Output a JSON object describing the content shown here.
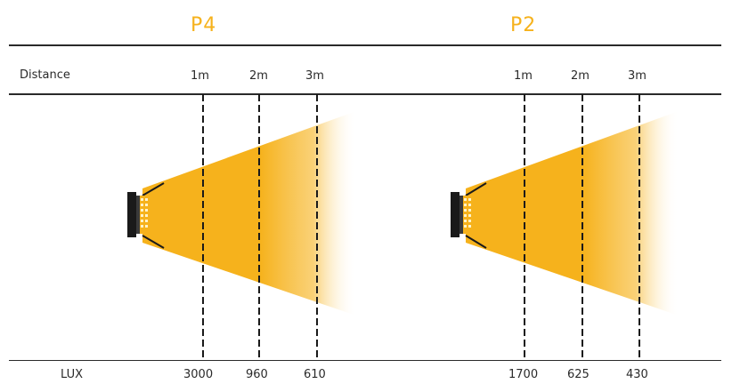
{
  "colors": {
    "beam": "#f6b21c",
    "title": "#f6b21c",
    "lines": "#1a1a1a"
  },
  "row_labels": {
    "distance": "Distance",
    "lux": "LUX"
  },
  "lamps": [
    {
      "title": "P4",
      "distances": [
        "1m",
        "2m",
        "3m"
      ],
      "lux": [
        "3000",
        "960",
        "610"
      ]
    },
    {
      "title": "P2",
      "distances": [
        "1m",
        "2m",
        "3m"
      ],
      "lux": [
        "1700",
        "625",
        "430"
      ]
    }
  ]
}
